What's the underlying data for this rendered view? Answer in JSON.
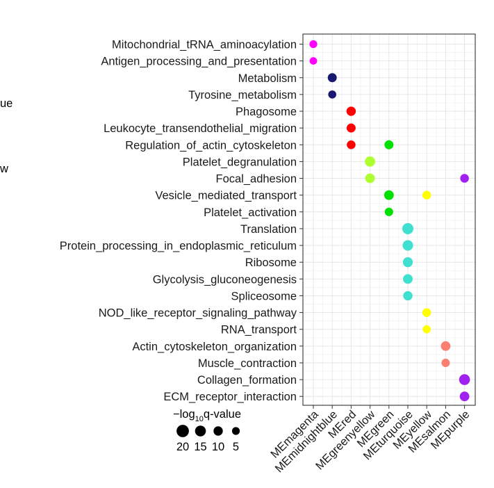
{
  "chart_data": {
    "type": "scatter",
    "title": "",
    "xlabel": "",
    "ylabel": "",
    "grid": true,
    "x_categories": [
      "MEmagenta",
      "MEmidnightblue",
      "MEred",
      "MEgreenyellow",
      "MEgreen",
      "MEturquoise",
      "MEyellow",
      "MEsalmon",
      "MEpurple"
    ],
    "y_categories": [
      "Mitochondrial_tRNA_aminoacylation",
      "Antigen_processing_and_presentation",
      "Metabolism",
      "Tyrosine_metabolism",
      "Phagosome",
      "Leukocyte_transendothelial_migration",
      "Regulation_of_actin_cytoskeleton",
      "Platelet_degranulation",
      "Focal_adhesion",
      "Vesicle_mediated_transport",
      "Platelet_activation",
      "Translation",
      "Protein_processing_in_endoplasmic_reticulum",
      "Ribosome",
      "Glycolysis_gluconeogenesis",
      "Spliceosome",
      "NOD_like_receptor_signaling_pathway",
      "RNA_transport",
      "Actin_cytoskeleton_organization",
      "Muscle_contraction",
      "Collagen_formation",
      "ECM_receptor_interaction"
    ],
    "module_colors": {
      "MEmagenta": "#ff00ff",
      "MEmidnightblue": "#191970",
      "MEred": "#ff0000",
      "MEgreenyellow": "#adff2f",
      "MEgreen": "#00e000",
      "MEturquoise": "#40e0d0",
      "MEyellow": "#ffff00",
      "MEsalmon": "#fa8072",
      "MEpurple": "#a020f0"
    },
    "points": [
      {
        "x": "MEmagenta",
        "y": "Mitochondrial_tRNA_aminoacylation",
        "size": 5
      },
      {
        "x": "MEmagenta",
        "y": "Antigen_processing_and_presentation",
        "size": 4
      },
      {
        "x": "MEmidnightblue",
        "y": "Metabolism",
        "size": 9
      },
      {
        "x": "MEmidnightblue",
        "y": "Tyrosine_metabolism",
        "size": 6
      },
      {
        "x": "MEred",
        "y": "Phagosome",
        "size": 10
      },
      {
        "x": "MEred",
        "y": "Leukocyte_transendothelial_migration",
        "size": 9
      },
      {
        "x": "MEred",
        "y": "Regulation_of_actin_cytoskeleton",
        "size": 8
      },
      {
        "x": "MEgreen",
        "y": "Regulation_of_actin_cytoskeleton",
        "size": 9
      },
      {
        "x": "MEgreenyellow",
        "y": "Platelet_degranulation",
        "size": 13
      },
      {
        "x": "MEgreenyellow",
        "y": "Focal_adhesion",
        "size": 11
      },
      {
        "x": "MEpurple",
        "y": "Focal_adhesion",
        "size": 8
      },
      {
        "x": "MEgreen",
        "y": "Vesicle_mediated_transport",
        "size": 11
      },
      {
        "x": "MEyellow",
        "y": "Vesicle_mediated_transport",
        "size": 8
      },
      {
        "x": "MEgreen",
        "y": "Platelet_activation",
        "size": 7
      },
      {
        "x": "MEturquoise",
        "y": "Translation",
        "size": 16
      },
      {
        "x": "MEturquoise",
        "y": "Protein_processing_in_endoplasmic_reticulum",
        "size": 14
      },
      {
        "x": "MEturquoise",
        "y": "Ribosome",
        "size": 12
      },
      {
        "x": "MEturquoise",
        "y": "Glycolysis_gluconeogenesis",
        "size": 11
      },
      {
        "x": "MEturquoise",
        "y": "Spliceosome",
        "size": 10
      },
      {
        "x": "MEyellow",
        "y": "NOD_like_receptor_signaling_pathway",
        "size": 8
      },
      {
        "x": "MEyellow",
        "y": "RNA_transport",
        "size": 6
      },
      {
        "x": "MEsalmon",
        "y": "Actin_cytoskeleton_organization",
        "size": 11
      },
      {
        "x": "MEsalmon",
        "y": "Muscle_contraction",
        "size": 7
      },
      {
        "x": "MEpurple",
        "y": "Collagen_formation",
        "size": 15
      },
      {
        "x": "MEpurple",
        "y": "ECM_receptor_interaction",
        "size": 11
      }
    ],
    "size_legend": {
      "title_prefix": "−log",
      "title_sub": "10",
      "title_suffix": "q-value",
      "values": [
        20,
        15,
        10,
        5
      ],
      "color": "#000000"
    },
    "edge_text": [
      "ue",
      "w"
    ]
  }
}
